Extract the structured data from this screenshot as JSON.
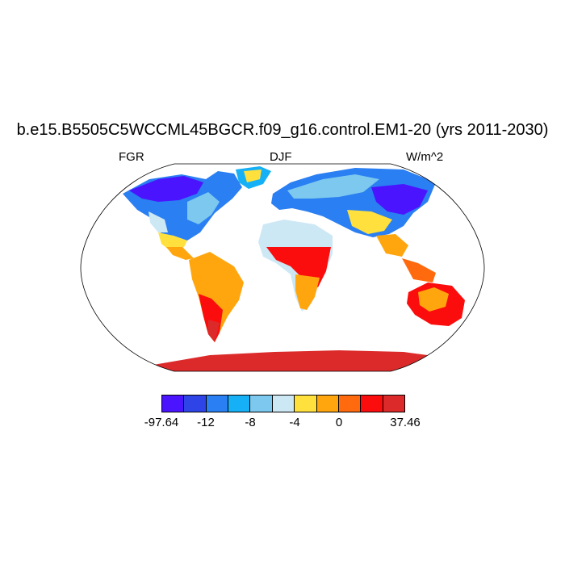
{
  "title": "b.e15.B5505C5WCCML45BGCR.f09_g16.control.EM1-20 (yrs 2011-2030)",
  "left_string": "FGR",
  "center_string": "DJF",
  "right_string": "W/m^2",
  "colorbar": {
    "colors": [
      "#4a14ff",
      "#2e44e6",
      "#2a7ff2",
      "#15b0f5",
      "#7cc8ef",
      "#cde8f5",
      "#ffe03c",
      "#ffa60f",
      "#ff6a0e",
      "#fb0d0d",
      "#dc2a2a"
    ],
    "labels": [
      "-97.64",
      "-12",
      "-8",
      "-4",
      "0",
      "37.46"
    ]
  }
}
